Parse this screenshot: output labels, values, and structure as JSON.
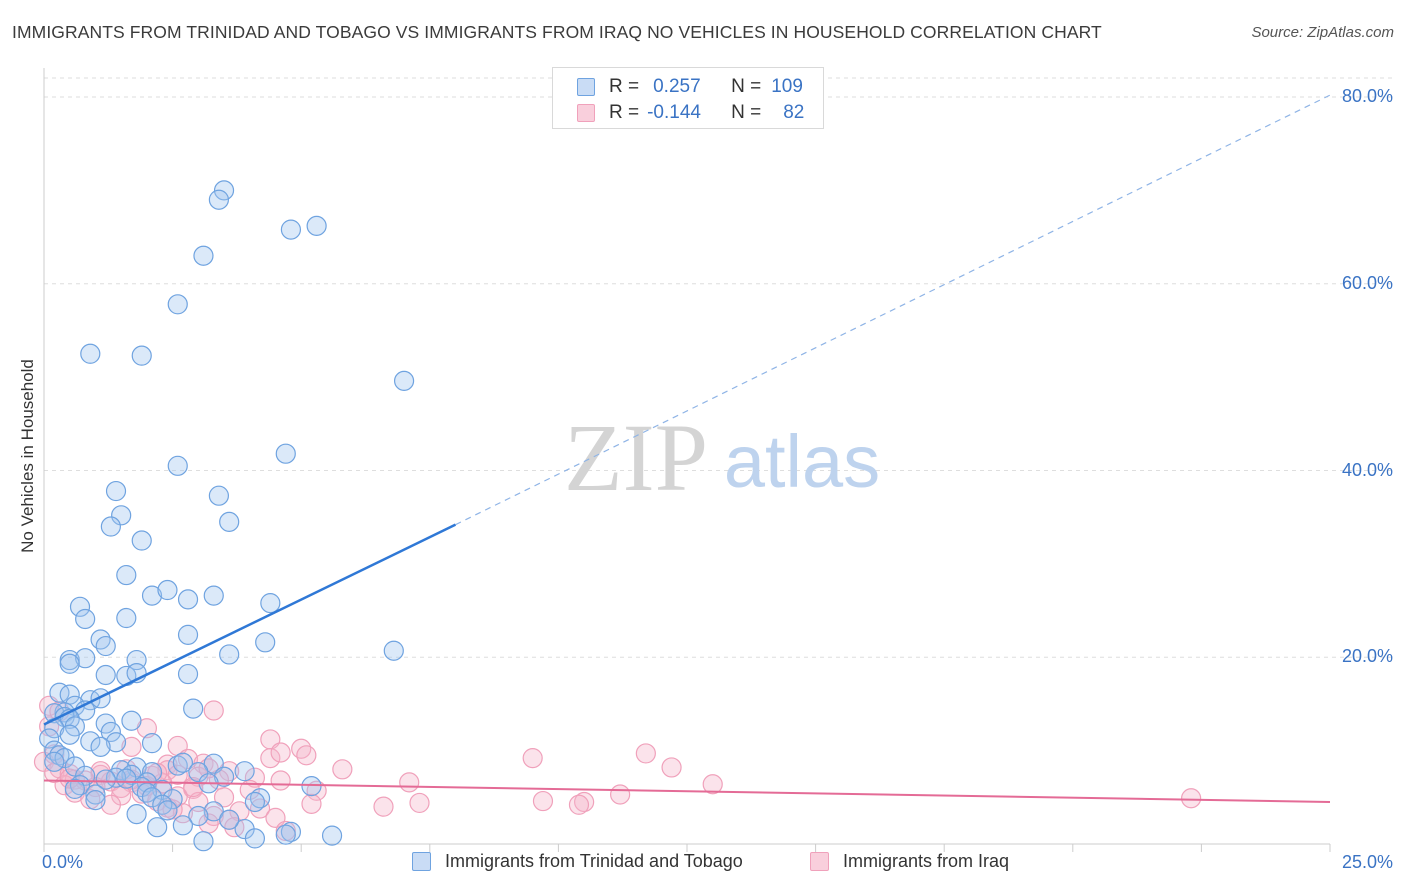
{
  "title": "IMMIGRANTS FROM TRINIDAD AND TOBAGO VS IMMIGRANTS FROM IRAQ NO VEHICLES IN HOUSEHOLD CORRELATION CHART",
  "source": "Source: ZipAtlas.com",
  "watermark": {
    "zip": "ZIP",
    "atlas": "atlas"
  },
  "legend": {
    "rows": [
      {
        "r_label": "R =",
        "r_value": "0.257",
        "n_label": "N =",
        "n_value": "109",
        "color": "#6fa3e0"
      },
      {
        "r_label": "R =",
        "r_value": "-0.144",
        "n_label": "N =",
        "n_value": "82",
        "color": "#f0a1bb"
      }
    ]
  },
  "bottom_legend": [
    {
      "label": "Immigrants from Trinidad and Tobago",
      "color": "#6fa3e0"
    },
    {
      "label": "Immigrants from Iraq",
      "color": "#f0a1bb"
    }
  ],
  "chart_data": {
    "type": "scatter",
    "title": "IMMIGRANTS FROM TRINIDAD AND TOBAGO VS IMMIGRANTS FROM IRAQ NO VEHICLES IN HOUSEHOLD CORRELATION CHART",
    "xlabel": "",
    "ylabel": "No Vehicles in Household",
    "xlim": [
      0,
      25
    ],
    "ylim": [
      0,
      82
    ],
    "x_tick_labels": [
      {
        "value": 0,
        "label": "0.0%"
      },
      {
        "value": 25,
        "label": "25.0%"
      }
    ],
    "y_tick_labels": [
      {
        "value": 20,
        "label": "20.0%"
      },
      {
        "value": 40,
        "label": "40.0%"
      },
      {
        "value": 60,
        "label": "60.0%"
      },
      {
        "value": 80,
        "label": "80.0%"
      }
    ],
    "grid": true,
    "series": [
      {
        "name": "Immigrants from Trinidad and Tobago",
        "color": "#6fa3e0",
        "trend": {
          "x0": 0,
          "y0": 12.8,
          "x1": 8.0,
          "y1": 34.2,
          "dash_to_x": 25.0,
          "dash_to_y": 80.2
        },
        "points": [
          [
            3.5,
            70.0
          ],
          [
            3.4,
            69.0
          ],
          [
            4.8,
            65.8
          ],
          [
            5.3,
            66.2
          ],
          [
            3.1,
            63.0
          ],
          [
            2.6,
            57.8
          ],
          [
            0.9,
            52.5
          ],
          [
            1.9,
            52.3
          ],
          [
            7.0,
            49.6
          ],
          [
            2.6,
            40.5
          ],
          [
            4.7,
            41.8
          ],
          [
            1.4,
            37.8
          ],
          [
            3.4,
            37.3
          ],
          [
            1.5,
            35.2
          ],
          [
            3.6,
            34.5
          ],
          [
            1.3,
            34.0
          ],
          [
            1.9,
            32.5
          ],
          [
            1.6,
            28.8
          ],
          [
            2.1,
            26.6
          ],
          [
            2.4,
            27.2
          ],
          [
            3.3,
            26.6
          ],
          [
            2.8,
            26.2
          ],
          [
            4.4,
            25.8
          ],
          [
            0.7,
            25.4
          ],
          [
            0.8,
            24.1
          ],
          [
            1.6,
            24.2
          ],
          [
            2.8,
            22.4
          ],
          [
            1.1,
            21.9
          ],
          [
            1.2,
            21.2
          ],
          [
            4.3,
            21.6
          ],
          [
            6.8,
            20.7
          ],
          [
            3.6,
            20.3
          ],
          [
            0.5,
            19.7
          ],
          [
            0.8,
            19.9
          ],
          [
            1.8,
            19.7
          ],
          [
            0.5,
            19.3
          ],
          [
            1.6,
            18.0
          ],
          [
            1.2,
            18.1
          ],
          [
            1.8,
            18.3
          ],
          [
            2.8,
            18.2
          ],
          [
            0.3,
            16.2
          ],
          [
            0.5,
            16.0
          ],
          [
            0.9,
            15.4
          ],
          [
            1.1,
            15.6
          ],
          [
            0.6,
            14.8
          ],
          [
            0.8,
            14.3
          ],
          [
            2.9,
            14.5
          ],
          [
            0.4,
            14.1
          ],
          [
            0.2,
            14.0
          ],
          [
            0.4,
            13.6
          ],
          [
            0.5,
            13.4
          ],
          [
            1.2,
            12.9
          ],
          [
            1.7,
            13.2
          ],
          [
            0.6,
            12.6
          ],
          [
            0.2,
            12.4
          ],
          [
            1.3,
            12.0
          ],
          [
            0.5,
            11.7
          ],
          [
            0.1,
            11.3
          ],
          [
            0.9,
            11.0
          ],
          [
            1.4,
            10.9
          ],
          [
            2.1,
            10.8
          ],
          [
            1.1,
            10.4
          ],
          [
            0.2,
            10.0
          ],
          [
            0.3,
            9.5
          ],
          [
            0.4,
            9.2
          ],
          [
            0.2,
            8.8
          ],
          [
            0.6,
            8.3
          ],
          [
            2.6,
            8.4
          ],
          [
            1.8,
            8.2
          ],
          [
            3.3,
            8.6
          ],
          [
            2.7,
            8.7
          ],
          [
            1.5,
            7.9
          ],
          [
            2.1,
            7.7
          ],
          [
            1.7,
            7.4
          ],
          [
            3.0,
            7.7
          ],
          [
            3.9,
            7.8
          ],
          [
            0.8,
            7.3
          ],
          [
            1.4,
            7.1
          ],
          [
            1.6,
            7.0
          ],
          [
            3.5,
            7.2
          ],
          [
            1.2,
            6.9
          ],
          [
            2.0,
            6.6
          ],
          [
            3.2,
            6.5
          ],
          [
            0.7,
            6.3
          ],
          [
            1.9,
            6.1
          ],
          [
            0.6,
            5.9
          ],
          [
            2.3,
            5.8
          ],
          [
            5.2,
            6.2
          ],
          [
            2.0,
            5.5
          ],
          [
            1.0,
            5.3
          ],
          [
            2.1,
            5.0
          ],
          [
            2.5,
            4.8
          ],
          [
            4.2,
            4.9
          ],
          [
            1.0,
            4.7
          ],
          [
            4.1,
            4.5
          ],
          [
            2.3,
            4.2
          ],
          [
            2.4,
            3.6
          ],
          [
            3.3,
            3.5
          ],
          [
            1.8,
            3.2
          ],
          [
            3.0,
            3.0
          ],
          [
            2.2,
            1.8
          ],
          [
            2.7,
            2.0
          ],
          [
            3.9,
            1.6
          ],
          [
            4.8,
            1.3
          ],
          [
            4.7,
            1.0
          ],
          [
            5.6,
            0.9
          ],
          [
            3.1,
            0.3
          ],
          [
            4.1,
            0.6
          ],
          [
            3.6,
            2.6
          ]
        ]
      },
      {
        "name": "Immigrants from Iraq",
        "color": "#f0a1bb",
        "trend": {
          "x0": 0,
          "y0": 6.8,
          "x1": 25.0,
          "y1": 4.5
        },
        "points": [
          [
            0.1,
            14.8
          ],
          [
            0.3,
            14.2
          ],
          [
            3.3,
            14.3
          ],
          [
            0.1,
            12.6
          ],
          [
            2.0,
            12.4
          ],
          [
            4.4,
            11.2
          ],
          [
            1.7,
            10.4
          ],
          [
            2.6,
            10.5
          ],
          [
            5.0,
            10.2
          ],
          [
            0.2,
            9.6
          ],
          [
            4.4,
            9.2
          ],
          [
            2.8,
            9.1
          ],
          [
            5.1,
            9.5
          ],
          [
            9.5,
            9.2
          ],
          [
            11.7,
            9.7
          ],
          [
            0.0,
            8.8
          ],
          [
            2.4,
            8.5
          ],
          [
            3.1,
            8.6
          ],
          [
            12.2,
            8.2
          ],
          [
            0.3,
            8.1
          ],
          [
            1.6,
            8.0
          ],
          [
            2.4,
            7.9
          ],
          [
            5.8,
            8.0
          ],
          [
            3.6,
            7.8
          ],
          [
            0.2,
            7.6
          ],
          [
            0.5,
            7.5
          ],
          [
            1.1,
            7.4
          ],
          [
            2.1,
            7.3
          ],
          [
            2.6,
            7.4
          ],
          [
            3.0,
            7.2
          ],
          [
            4.1,
            7.1
          ],
          [
            0.6,
            6.9
          ],
          [
            0.8,
            6.8
          ],
          [
            1.3,
            6.7
          ],
          [
            1.7,
            6.6
          ],
          [
            2.3,
            6.5
          ],
          [
            3.4,
            6.9
          ],
          [
            4.6,
            6.8
          ],
          [
            7.1,
            6.6
          ],
          [
            13.0,
            6.4
          ],
          [
            0.4,
            6.3
          ],
          [
            1.0,
            6.1
          ],
          [
            1.5,
            6.0
          ],
          [
            2.9,
            5.9
          ],
          [
            4.0,
            5.8
          ],
          [
            5.3,
            5.7
          ],
          [
            0.6,
            5.5
          ],
          [
            1.9,
            5.4
          ],
          [
            1.5,
            5.2
          ],
          [
            2.6,
            5.1
          ],
          [
            3.5,
            5.0
          ],
          [
            11.2,
            5.3
          ],
          [
            22.3,
            4.9
          ],
          [
            0.9,
            4.8
          ],
          [
            2.2,
            4.6
          ],
          [
            3.0,
            4.5
          ],
          [
            5.2,
            4.3
          ],
          [
            9.7,
            4.6
          ],
          [
            10.5,
            4.5
          ],
          [
            7.3,
            4.4
          ],
          [
            10.4,
            4.2
          ],
          [
            6.6,
            4.0
          ],
          [
            1.3,
            4.2
          ],
          [
            2.4,
            3.9
          ],
          [
            4.2,
            3.8
          ],
          [
            3.8,
            3.5
          ],
          [
            2.7,
            3.3
          ],
          [
            3.3,
            3.0
          ],
          [
            4.5,
            2.8
          ],
          [
            3.6,
            2.6
          ],
          [
            2.5,
            3.7
          ],
          [
            3.2,
            2.2
          ],
          [
            4.7,
            1.4
          ],
          [
            3.7,
            1.8
          ],
          [
            1.7,
            6.9
          ],
          [
            2.0,
            6.2
          ],
          [
            2.2,
            7.6
          ],
          [
            0.5,
            7.0
          ],
          [
            1.1,
            7.8
          ],
          [
            3.2,
            8.1
          ],
          [
            4.6,
            9.8
          ],
          [
            2.9,
            6.1
          ]
        ]
      }
    ]
  }
}
